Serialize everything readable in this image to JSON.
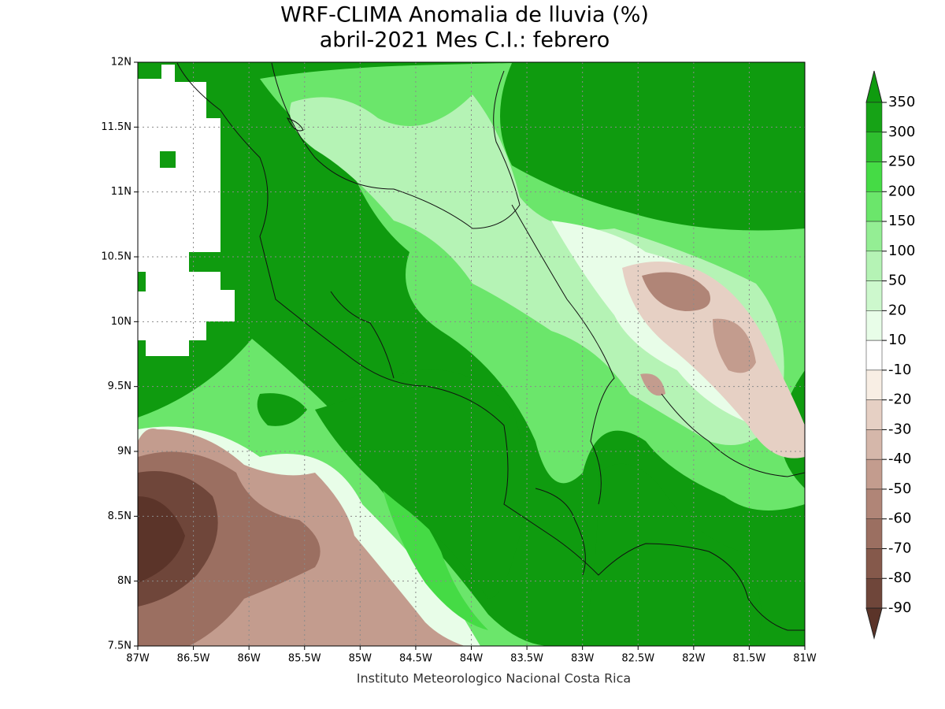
{
  "title": [
    "WRF-CLIMA Anomalia de lluvia (%)",
    "abril-2021 Mes C.I.: febrero"
  ],
  "map": {
    "lon_labels": [
      "87W",
      "86.5W",
      "86W",
      "85.5W",
      "85W",
      "84.5W",
      "84W",
      "83.5W",
      "83W",
      "82.5W",
      "82W",
      "81.5W",
      "81W"
    ],
    "lat_labels": [
      "12N",
      "11.5N",
      "11N",
      "10.5N",
      "10N",
      "9.5N",
      "9N",
      "8.5N",
      "8N",
      "7.5N"
    ]
  },
  "colorbar": {
    "labels": [
      "350",
      "300",
      "250",
      "200",
      "150",
      "100",
      "50",
      "20",
      "10",
      "-10",
      "-20",
      "-30",
      "-40",
      "-50",
      "-60",
      "-70",
      "-80",
      "-90"
    ],
    "colors": [
      "#0f9b0f",
      "#16a316",
      "#2fbf2f",
      "#45db45",
      "#6be66b",
      "#94ee94",
      "#b5f3b5",
      "#cdf8cd",
      "#e8fde8",
      "#ffffff",
      "#f8eee4",
      "#e6d0c4",
      "#d5b7aa",
      "#c39c8e",
      "#b08577",
      "#9b6f61",
      "#85594b",
      "#6f463a",
      "#5b3429"
    ]
  },
  "credit": "Instituto Meteorologico Nacional Costa Rica"
}
